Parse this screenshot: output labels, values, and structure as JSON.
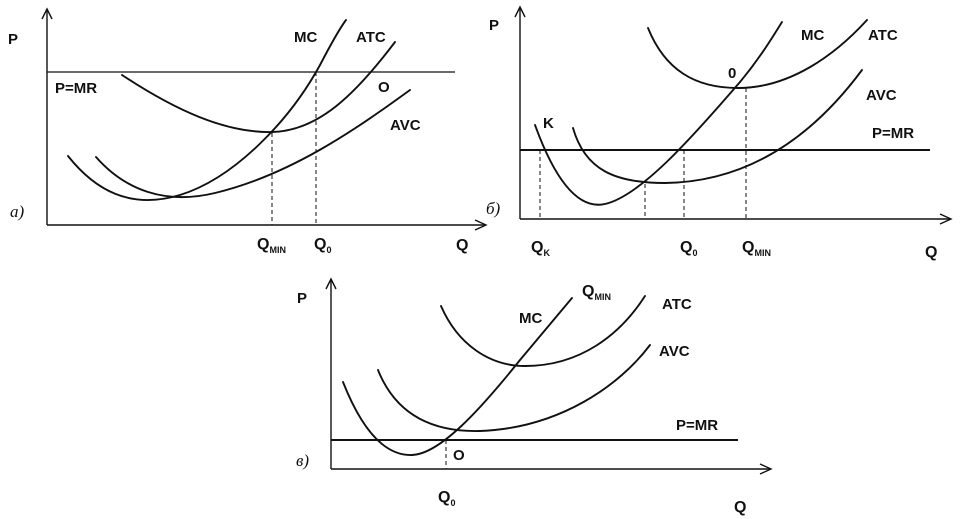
{
  "panel_a": {
    "panel_label": "а)",
    "y_axis": "P",
    "x_axis": "Q",
    "curves": {
      "mc": "MC",
      "atc": "ATC",
      "avc": "AVC"
    },
    "price_line": "P=MR",
    "point": "O",
    "q_min": {
      "main": "Q",
      "sub": "MIN"
    },
    "q_0": {
      "main": "Q",
      "sub": "0"
    }
  },
  "panel_b": {
    "panel_label": "б)",
    "y_axis": "P",
    "x_axis": "Q",
    "curves": {
      "mc": "MC",
      "atc": "ATC",
      "avc": "AVC"
    },
    "price_line": "P=MR",
    "point_o": "0",
    "point_k": "K",
    "q_k": {
      "main": "Q",
      "sub": "K"
    },
    "q_0": {
      "main": "Q",
      "sub": "0"
    },
    "q_min": {
      "main": "Q",
      "sub": "MIN"
    }
  },
  "panel_c": {
    "panel_label": "в)",
    "y_axis": "P",
    "x_axis": "Q",
    "curves": {
      "mc": "MC",
      "atc": "ATC",
      "avc": "AVC"
    },
    "q_min_label": {
      "main": "Q",
      "sub": "MIN"
    },
    "price_line": "P=MR",
    "point": "O",
    "q_0": {
      "main": "Q",
      "sub": "0"
    }
  }
}
